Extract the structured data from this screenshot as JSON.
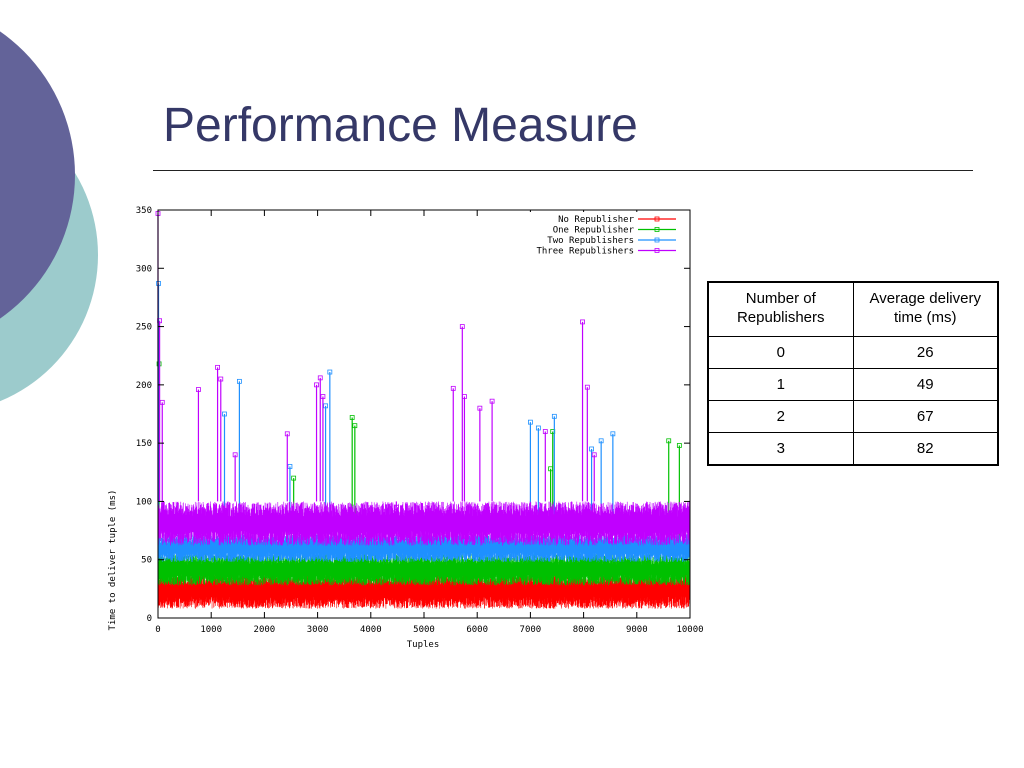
{
  "slide": {
    "title": "Performance Measure",
    "colors": {
      "title": "#353867",
      "circle_dark": "#636399",
      "circle_light": "#9ccbcc"
    }
  },
  "chart_data": {
    "type": "line",
    "title": "",
    "xlabel": "Tuples",
    "ylabel": "Time to deliver tuple (ms)",
    "xlim": [
      0,
      10000
    ],
    "ylim": [
      0,
      350
    ],
    "x_ticks": [
      0,
      1000,
      2000,
      3000,
      4000,
      5000,
      6000,
      7000,
      8000,
      9000,
      10000
    ],
    "y_ticks": [
      0,
      50,
      100,
      150,
      200,
      250,
      300,
      350
    ],
    "grid": false,
    "legend_position": "top-right",
    "series": [
      {
        "name": "No Republisher",
        "color": "#ff0000",
        "marker": "plus",
        "band": [
          8,
          38
        ],
        "spikes": []
      },
      {
        "name": "One Republisher",
        "color": "#00c000",
        "marker": "cross",
        "band": [
          28,
          55
        ],
        "spikes": [
          [
            20,
            218
          ],
          [
            3650,
            172
          ],
          [
            3700,
            165
          ],
          [
            7380,
            128
          ],
          [
            7420,
            160
          ],
          [
            9600,
            152
          ],
          [
            9800,
            148
          ],
          [
            2550,
            120
          ]
        ]
      },
      {
        "name": "Two Republishers",
        "color": "#1e90ff",
        "marker": "star",
        "band": [
          48,
          72
        ],
        "spikes": [
          [
            10,
            287
          ],
          [
            1250,
            175
          ],
          [
            1530,
            203
          ],
          [
            2480,
            130
          ],
          [
            3150,
            182
          ],
          [
            3230,
            211
          ],
          [
            7000,
            168
          ],
          [
            7150,
            163
          ],
          [
            7450,
            173
          ],
          [
            8150,
            145
          ],
          [
            8330,
            152
          ],
          [
            8550,
            158
          ]
        ]
      },
      {
        "name": "Three Republishers",
        "color": "#c000ff",
        "marker": "box",
        "band": [
          62,
          100
        ],
        "spikes": [
          [
            0,
            347
          ],
          [
            30,
            255
          ],
          [
            80,
            185
          ],
          [
            760,
            196
          ],
          [
            1120,
            215
          ],
          [
            1180,
            205
          ],
          [
            1450,
            140
          ],
          [
            2430,
            158
          ],
          [
            2980,
            200
          ],
          [
            3050,
            206
          ],
          [
            3100,
            190
          ],
          [
            4480,
            95
          ],
          [
            5550,
            197
          ],
          [
            5720,
            250
          ],
          [
            5760,
            190
          ],
          [
            6050,
            180
          ],
          [
            6280,
            186
          ],
          [
            7280,
            160
          ],
          [
            7980,
            254
          ],
          [
            8070,
            198
          ],
          [
            8200,
            140
          ]
        ]
      }
    ]
  },
  "table": {
    "headers": [
      "Number of Republishers",
      "Average delivery time (ms)"
    ],
    "rows": [
      [
        "0",
        "26"
      ],
      [
        "1",
        "49"
      ],
      [
        "2",
        "67"
      ],
      [
        "3",
        "82"
      ]
    ]
  }
}
